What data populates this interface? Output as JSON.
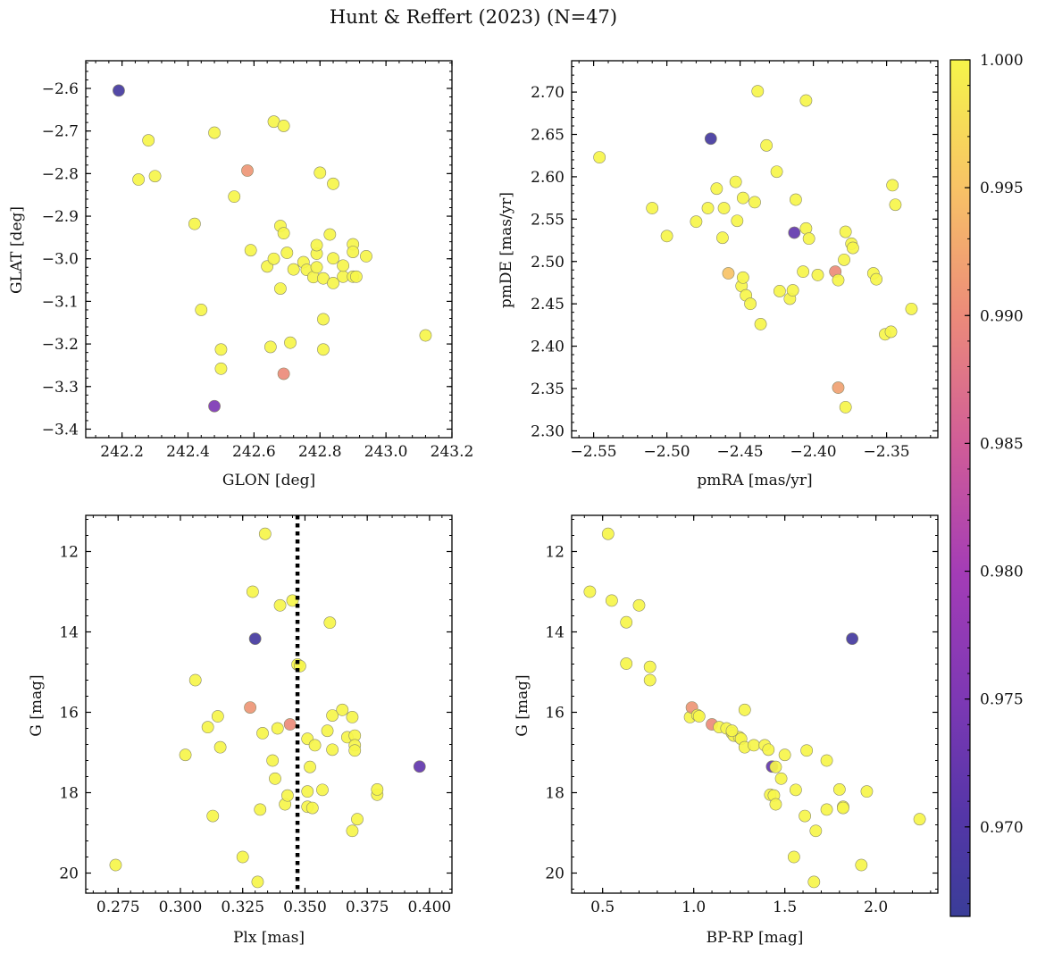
{
  "title": "Hunt & Reffert (2023) (N=47)",
  "colorbar": {
    "ticks": [
      "0.970",
      "0.975",
      "0.980",
      "0.985",
      "0.990",
      "0.995",
      "1.000"
    ],
    "range": [
      0.9665,
      1.0
    ]
  },
  "chart_data": [
    {
      "type": "scatter",
      "name": "panel-glon-glat",
      "xlabel": "GLON [deg]",
      "ylabel": "GLAT [deg]",
      "xlim": [
        242.09,
        243.2
      ],
      "ylim": [
        -3.42,
        -2.535
      ],
      "xticks": [
        242.2,
        242.4,
        242.6,
        242.8,
        243.0,
        243.2
      ],
      "xtick_labels": [
        "242.2",
        "242.4",
        "242.6",
        "242.8",
        "243.0",
        "243.2"
      ],
      "yticks": [
        -3.4,
        -3.3,
        -3.2,
        -3.1,
        -3.0,
        -2.9,
        -2.8,
        -2.7,
        -2.6
      ],
      "ytick_labels": [
        "−3.4",
        "−3.3",
        "−3.2",
        "−3.1",
        "−3.0",
        "−2.9",
        "−2.8",
        "−2.7",
        "−2.6"
      ],
      "points": [
        [
          242.19,
          -2.605,
          0.968
        ],
        [
          242.25,
          -2.814,
          1.0
        ],
        [
          242.28,
          -2.722,
          1.0
        ],
        [
          242.3,
          -2.806,
          1.0
        ],
        [
          242.42,
          -2.918,
          1.0
        ],
        [
          242.44,
          -3.12,
          1.0
        ],
        [
          242.48,
          -2.704,
          1.0
        ],
        [
          242.48,
          -3.346,
          0.975
        ],
        [
          242.5,
          -3.213,
          1.0
        ],
        [
          242.5,
          -3.258,
          1.0
        ],
        [
          242.54,
          -2.854,
          1.0
        ],
        [
          242.58,
          -2.793,
          0.991
        ],
        [
          242.59,
          -2.98,
          1.0
        ],
        [
          242.64,
          -3.018,
          1.0
        ],
        [
          242.65,
          -3.207,
          1.0
        ],
        [
          242.66,
          -2.678,
          1.0
        ],
        [
          242.68,
          -2.923,
          1.0
        ],
        [
          242.68,
          -3.07,
          1.0
        ],
        [
          242.69,
          -2.688,
          1.0
        ],
        [
          242.69,
          -2.94,
          1.0
        ],
        [
          242.69,
          -3.27,
          0.99
        ],
        [
          242.7,
          -2.986,
          1.0
        ],
        [
          242.71,
          -3.197,
          1.0
        ],
        [
          242.72,
          -3.025,
          1.0
        ],
        [
          242.75,
          -3.008,
          1.0
        ],
        [
          242.76,
          -3.026,
          1.0
        ],
        [
          242.78,
          -3.043,
          1.0
        ],
        [
          242.79,
          -2.988,
          1.0
        ],
        [
          242.79,
          -2.968,
          1.0
        ],
        [
          242.79,
          -3.02,
          1.0
        ],
        [
          242.8,
          -2.798,
          1.0
        ],
        [
          242.81,
          -3.142,
          1.0
        ],
        [
          242.81,
          -3.213,
          1.0
        ],
        [
          242.81,
          -3.046,
          1.0
        ],
        [
          242.83,
          -2.943,
          1.0
        ],
        [
          242.84,
          -2.999,
          1.0
        ],
        [
          242.84,
          -2.824,
          1.0
        ],
        [
          242.84,
          -3.057,
          1.0
        ],
        [
          242.87,
          -3.042,
          1.0
        ],
        [
          242.87,
          -3.016,
          1.0
        ],
        [
          242.9,
          -2.966,
          1.0
        ],
        [
          242.9,
          -2.984,
          1.0
        ],
        [
          242.9,
          -3.042,
          1.0
        ],
        [
          242.91,
          -3.042,
          1.0
        ],
        [
          242.94,
          -2.994,
          1.0
        ],
        [
          243.12,
          -3.18,
          1.0
        ],
        [
          242.66,
          -3.0,
          1.0
        ]
      ]
    },
    {
      "type": "scatter",
      "name": "panel-pmra-pmde",
      "xlabel": "pmRA [mas/yr]",
      "ylabel": "pmDE [mas/yr]",
      "xlim": [
        -2.565,
        -2.315
      ],
      "ylim": [
        2.292,
        2.737
      ],
      "xticks": [
        -2.55,
        -2.5,
        -2.45,
        -2.4,
        -2.35
      ],
      "xtick_labels": [
        "−2.55",
        "−2.50",
        "−2.45",
        "−2.40",
        "−2.35"
      ],
      "yticks": [
        2.3,
        2.35,
        2.4,
        2.45,
        2.5,
        2.55,
        2.6,
        2.65,
        2.7
      ],
      "ytick_labels": [
        "2.30",
        "2.35",
        "2.40",
        "2.45",
        "2.50",
        "2.55",
        "2.60",
        "2.65",
        "2.70"
      ],
      "points": [
        [
          -2.546,
          2.623,
          1.0
        ],
        [
          -2.51,
          2.563,
          1.0
        ],
        [
          -2.5,
          2.53,
          1.0
        ],
        [
          -2.48,
          2.547,
          1.0
        ],
        [
          -2.472,
          2.563,
          1.0
        ],
        [
          -2.47,
          2.645,
          0.968
        ],
        [
          -2.466,
          2.586,
          1.0
        ],
        [
          -2.462,
          2.528,
          1.0
        ],
        [
          -2.461,
          2.563,
          1.0
        ],
        [
          -2.458,
          2.486,
          0.995
        ],
        [
          -2.453,
          2.594,
          1.0
        ],
        [
          -2.452,
          2.548,
          1.0
        ],
        [
          -2.449,
          2.471,
          1.0
        ],
        [
          -2.448,
          2.481,
          1.0
        ],
        [
          -2.448,
          2.575,
          1.0
        ],
        [
          -2.446,
          2.46,
          1.0
        ],
        [
          -2.443,
          2.45,
          1.0
        ],
        [
          -2.44,
          2.57,
          1.0
        ],
        [
          -2.438,
          2.701,
          1.0
        ],
        [
          -2.436,
          2.426,
          1.0
        ],
        [
          -2.432,
          2.637,
          1.0
        ],
        [
          -2.425,
          2.606,
          1.0
        ],
        [
          -2.423,
          2.465,
          1.0
        ],
        [
          -2.416,
          2.456,
          1.0
        ],
        [
          -2.414,
          2.466,
          1.0
        ],
        [
          -2.413,
          2.534,
          0.972
        ],
        [
          -2.412,
          2.573,
          1.0
        ],
        [
          -2.407,
          2.488,
          1.0
        ],
        [
          -2.405,
          2.539,
          1.0
        ],
        [
          -2.405,
          2.69,
          1.0
        ],
        [
          -2.403,
          2.527,
          1.0
        ],
        [
          -2.397,
          2.484,
          1.0
        ],
        [
          -2.385,
          2.488,
          0.99
        ],
        [
          -2.383,
          2.478,
          1.0
        ],
        [
          -2.383,
          2.351,
          0.992
        ],
        [
          -2.379,
          2.502,
          1.0
        ],
        [
          -2.378,
          2.535,
          1.0
        ],
        [
          -2.378,
          2.328,
          1.0
        ],
        [
          -2.374,
          2.521,
          1.0
        ],
        [
          -2.373,
          2.516,
          1.0
        ],
        [
          -2.359,
          2.486,
          1.0
        ],
        [
          -2.357,
          2.479,
          1.0
        ],
        [
          -2.351,
          2.414,
          1.0
        ],
        [
          -2.347,
          2.417,
          1.0
        ],
        [
          -2.346,
          2.59,
          1.0
        ],
        [
          -2.344,
          2.567,
          1.0
        ],
        [
          -2.333,
          2.444,
          1.0
        ]
      ]
    },
    {
      "type": "scatter",
      "name": "panel-plx-g",
      "xlabel": "Plx [mas]",
      "ylabel": "G [mag]",
      "xlim": [
        0.262,
        0.409
      ],
      "ylim": [
        20.5,
        11.1
      ],
      "reference_line_x": 0.347,
      "xticks": [
        0.275,
        0.3,
        0.325,
        0.35,
        0.375,
        0.4
      ],
      "xtick_labels": [
        "0.275",
        "0.300",
        "0.325",
        "0.350",
        "0.375",
        "0.400"
      ],
      "yticks": [
        12,
        14,
        16,
        18,
        20
      ],
      "ytick_labels": [
        "12",
        "14",
        "16",
        "18",
        "20"
      ],
      "points": [
        [
          0.274,
          19.8,
          1.0
        ],
        [
          0.302,
          17.06,
          1.0
        ],
        [
          0.306,
          15.2,
          1.0
        ],
        [
          0.311,
          16.37,
          1.0
        ],
        [
          0.313,
          18.58,
          1.0
        ],
        [
          0.315,
          16.1,
          1.0
        ],
        [
          0.316,
          16.87,
          1.0
        ],
        [
          0.325,
          19.6,
          1.0
        ],
        [
          0.328,
          15.88,
          0.991
        ],
        [
          0.329,
          13.0,
          1.0
        ],
        [
          0.33,
          14.17,
          0.968
        ],
        [
          0.331,
          20.22,
          1.0
        ],
        [
          0.332,
          18.42,
          1.0
        ],
        [
          0.333,
          16.52,
          1.0
        ],
        [
          0.334,
          11.56,
          1.0
        ],
        [
          0.337,
          17.2,
          1.0
        ],
        [
          0.338,
          17.65,
          1.0
        ],
        [
          0.339,
          16.4,
          1.0
        ],
        [
          0.34,
          13.34,
          1.0
        ],
        [
          0.342,
          18.29,
          1.0
        ],
        [
          0.343,
          18.07,
          1.0
        ],
        [
          0.345,
          13.22,
          1.0
        ],
        [
          0.344,
          16.3,
          0.99
        ],
        [
          0.347,
          14.81,
          1.0
        ],
        [
          0.348,
          14.85,
          1.0
        ],
        [
          0.351,
          16.66,
          1.0
        ],
        [
          0.351,
          17.97,
          1.0
        ],
        [
          0.351,
          18.35,
          1.0
        ],
        [
          0.352,
          17.36,
          1.0
        ],
        [
          0.353,
          18.38,
          1.0
        ],
        [
          0.354,
          16.82,
          1.0
        ],
        [
          0.357,
          17.93,
          1.0
        ],
        [
          0.359,
          16.46,
          1.0
        ],
        [
          0.36,
          13.77,
          1.0
        ],
        [
          0.361,
          16.08,
          1.0
        ],
        [
          0.361,
          16.93,
          1.0
        ],
        [
          0.365,
          15.94,
          1.0
        ],
        [
          0.367,
          16.62,
          1.0
        ],
        [
          0.369,
          16.12,
          1.0
        ],
        [
          0.369,
          18.95,
          1.0
        ],
        [
          0.37,
          16.58,
          1.0
        ],
        [
          0.37,
          16.82,
          1.0
        ],
        [
          0.37,
          16.95,
          1.0
        ],
        [
          0.371,
          18.66,
          1.0
        ],
        [
          0.379,
          18.05,
          1.0
        ],
        [
          0.379,
          17.92,
          1.0
        ],
        [
          0.396,
          17.35,
          0.972
        ]
      ]
    },
    {
      "type": "scatter",
      "name": "panel-bprp-g",
      "xlabel": "BP-RP [mag]",
      "ylabel": "G [mag]",
      "xlim": [
        0.33,
        2.34
      ],
      "ylim": [
        20.5,
        11.1
      ],
      "xticks": [
        0.5,
        1.0,
        1.5,
        2.0
      ],
      "xtick_labels": [
        "0.5",
        "1.0",
        "1.5",
        "2.0"
      ],
      "yticks": [
        12,
        14,
        16,
        18,
        20
      ],
      "ytick_labels": [
        "12",
        "14",
        "16",
        "18",
        "20"
      ],
      "points": [
        [
          0.43,
          13.0,
          1.0
        ],
        [
          0.53,
          11.56,
          1.0
        ],
        [
          0.55,
          13.22,
          1.0
        ],
        [
          0.63,
          14.79,
          1.0
        ],
        [
          0.63,
          13.76,
          1.0
        ],
        [
          0.7,
          13.34,
          1.0
        ],
        [
          0.76,
          14.87,
          1.0
        ],
        [
          0.76,
          15.2,
          1.0
        ],
        [
          0.98,
          16.12,
          1.0
        ],
        [
          0.99,
          15.88,
          0.991
        ],
        [
          1.02,
          16.07,
          1.0
        ],
        [
          1.03,
          16.1,
          1.0
        ],
        [
          1.1,
          16.3,
          0.99
        ],
        [
          1.14,
          16.37,
          1.0
        ],
        [
          1.18,
          16.4,
          1.0
        ],
        [
          1.21,
          16.52,
          1.0
        ],
        [
          1.22,
          16.58,
          1.0
        ],
        [
          1.25,
          16.62,
          1.0
        ],
        [
          1.26,
          16.66,
          1.0
        ],
        [
          1.28,
          16.87,
          1.0
        ],
        [
          1.28,
          15.94,
          1.0
        ],
        [
          1.33,
          16.82,
          1.0
        ],
        [
          1.39,
          16.82,
          1.0
        ],
        [
          1.41,
          16.93,
          1.0
        ],
        [
          1.42,
          18.05,
          1.0
        ],
        [
          1.43,
          17.35,
          0.972
        ],
        [
          1.44,
          18.07,
          1.0
        ],
        [
          1.45,
          17.36,
          1.0
        ],
        [
          1.45,
          18.29,
          1.0
        ],
        [
          1.48,
          17.65,
          1.0
        ],
        [
          1.5,
          17.06,
          1.0
        ],
        [
          1.55,
          19.6,
          1.0
        ],
        [
          1.56,
          17.93,
          1.0
        ],
        [
          1.61,
          18.58,
          1.0
        ],
        [
          1.62,
          16.95,
          1.0
        ],
        [
          1.66,
          20.22,
          1.0
        ],
        [
          1.67,
          18.95,
          1.0
        ],
        [
          1.73,
          17.2,
          1.0
        ],
        [
          1.73,
          18.42,
          1.0
        ],
        [
          1.8,
          17.92,
          1.0
        ],
        [
          1.82,
          18.35,
          1.0
        ],
        [
          1.82,
          18.38,
          1.0
        ],
        [
          1.87,
          14.17,
          0.968
        ],
        [
          1.92,
          19.8,
          1.0
        ],
        [
          1.95,
          17.97,
          1.0
        ],
        [
          2.24,
          18.66,
          1.0
        ],
        [
          1.21,
          16.46,
          1.0
        ]
      ]
    }
  ]
}
